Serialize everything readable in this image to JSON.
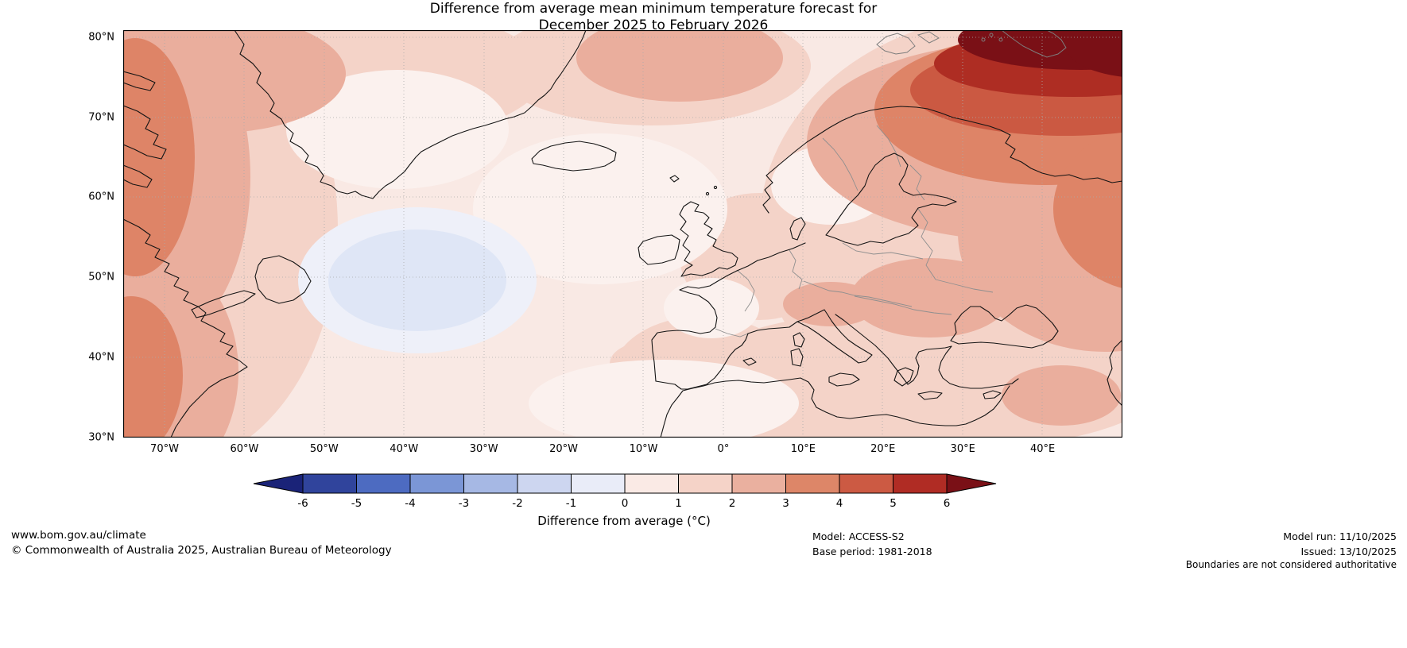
{
  "title": {
    "line1": "Difference from average mean minimum temperature forecast for",
    "line2": "December 2025 to February 2026"
  },
  "map": {
    "lat_labels": [
      "80°N",
      "70°N",
      "60°N",
      "50°N",
      "40°N",
      "30°N"
    ],
    "lon_labels": [
      "70°W",
      "60°W",
      "50°W",
      "40°W",
      "30°W",
      "20°W",
      "10°W",
      "0°",
      "10°E",
      "20°E",
      "30°E",
      "40°E"
    ]
  },
  "colorbar": {
    "tick_labels": [
      "-6",
      "-5",
      "-4",
      "-3",
      "-2",
      "-1",
      "0",
      "1",
      "2",
      "3",
      "4",
      "5",
      "6"
    ],
    "segment_colors": [
      "#30449c",
      "#4d6bc1",
      "#7b96d6",
      "#a6b8e4",
      "#cdd6f0",
      "#e9ecf8",
      "#faeae5",
      "#f5d3c8",
      "#eab09f",
      "#dd8668",
      "#cc5a43",
      "#b02c24"
    ],
    "arrow_left_color": "#1a2378",
    "arrow_right_color": "#7a1016",
    "caption": "Difference from average (°C)"
  },
  "palette": {
    "level_0_1": "#f9e9e4",
    "level_1_2": "#f4d3c8",
    "level_2_3": "#eaae9d",
    "level_3_4": "#de8467",
    "level_4_5": "#cb5942",
    "level_5_6": "#ae2d23",
    "level_6_plus": "#7a1016",
    "level_m1_outer": "#eef0f9",
    "level_m1_inner": "#dfe6f6",
    "pale_0": "#fbf1ee",
    "grid": "#ababab",
    "coast": "#141414",
    "border": "#8f8f8f",
    "arctic_island": "#7d7d7d",
    "frame": "#000000"
  },
  "footer": {
    "site": "www.bom.gov.au/climate",
    "copyright": "© Commonwealth of Australia 2025, Australian Bureau of Meteorology",
    "model": "Model: ACCESS-S2",
    "base_period": "Base period: 1981-2018",
    "model_run": "Model run: 11/10/2025",
    "issued": "Issued: 13/10/2025",
    "disclaimer": "Boundaries are not considered authoritative"
  },
  "chart_data": {
    "type": "heatmap",
    "title": "Difference from average mean minimum temperature forecast for December 2025 to February 2026",
    "units": "°C",
    "projection": "equirectangular, North Atlantic / Europe sector",
    "x_ticks": [
      "70°W",
      "60°W",
      "50°W",
      "40°W",
      "30°W",
      "20°W",
      "10°W",
      "0°",
      "10°E",
      "20°E",
      "30°E",
      "40°E"
    ],
    "y_ticks": [
      "80°N",
      "70°N",
      "60°N",
      "50°N",
      "40°N",
      "30°N"
    ],
    "x_range_deg": [
      -75,
      48
    ],
    "y_range_deg": [
      30,
      81
    ],
    "colorbar": {
      "label": "Difference from average (°C)",
      "levels": [
        -6,
        -5,
        -4,
        -3,
        -2,
        -1,
        0,
        1,
        2,
        3,
        4,
        5,
        6
      ],
      "extend": "both",
      "legend_position": "bottom"
    },
    "grid": true,
    "regions": [
      {
        "area": "Svalbard / Barents Sea (top right corner)",
        "anomaly_c": "+6 or more"
      },
      {
        "area": "Arctic band south of Svalbard",
        "anomaly_c": "+4 to +6"
      },
      {
        "area": "Northern Scandinavia and northwest Russia",
        "anomaly_c": "+2 to +4"
      },
      {
        "area": "Western Russia (right edge, 55-70N)",
        "anomaly_c": "+3 to +4"
      },
      {
        "area": "Baffin Bay / Labrador Sea / eastern Canada (left edge)",
        "anomaly_c": "+2 to +4"
      },
      {
        "area": "Central North Atlantic near 50N 45W",
        "anomaly_c": "-1 to 0"
      },
      {
        "area": "Greenland interior and central Atlantic",
        "anomaly_c": "0 to +1"
      },
      {
        "area": "UK, western and central Europe",
        "anomaly_c": "+1 to +2"
      },
      {
        "area": "Balkans / southeastern Europe",
        "anomaly_c": "+2 to +3"
      },
      {
        "area": "Mediterranean and North Africa",
        "anomaly_c": "+1 to +2"
      }
    ]
  }
}
